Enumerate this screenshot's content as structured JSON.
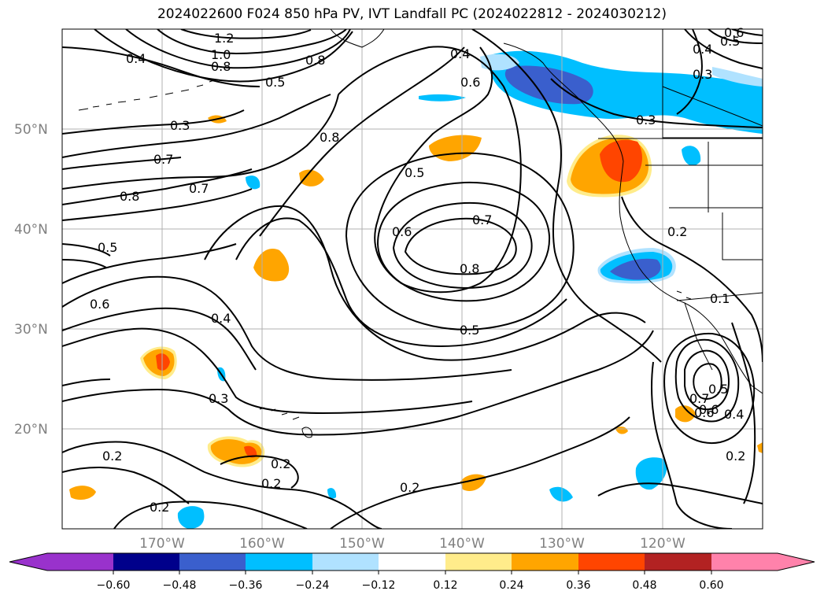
{
  "title": "2024022600 F024 850 hPa PV, IVT Landfall PC (2024022812 - 2024030212)",
  "lat_labels": [
    "50°N",
    "40°N",
    "30°N",
    "20°N"
  ],
  "lon_labels": [
    "170°W",
    "160°W",
    "150°W",
    "140°W",
    "130°W",
    "120°W"
  ],
  "colorbar": {
    "tick_labels": [
      "−0.60",
      "−0.48",
      "−0.36",
      "−0.24",
      "−0.12",
      "0.12",
      "0.24",
      "0.36",
      "0.48",
      "0.60"
    ],
    "colors": [
      "#9932cc",
      "#00008b",
      "#3a5fcd",
      "#00bfff",
      "#b0e2ff",
      "#ffffff",
      "#ffec8b",
      "#ffa500",
      "#ff4500",
      "#b22222",
      "#ff82ab"
    ]
  },
  "contour_labels": [
    "1.2",
    "1.0",
    "0.8",
    "0.4",
    "0.5",
    "0.8",
    "0.3",
    "0.7",
    "0.8",
    "0.7",
    "0.5",
    "0.6",
    "0.4",
    "0.3",
    "0.2",
    "0.2",
    "0.2",
    "0.2",
    "0.4",
    "0.6",
    "0.5",
    "0.8",
    "0.5",
    "0.6",
    "0.7",
    "0.8",
    "0.5",
    "0.2",
    "0.3",
    "0.5",
    "0.6",
    "0.6",
    "0.3",
    "0.2",
    "0.7",
    "0.6",
    "0.4",
    "0.2",
    "0.1",
    "0.4"
  ]
}
